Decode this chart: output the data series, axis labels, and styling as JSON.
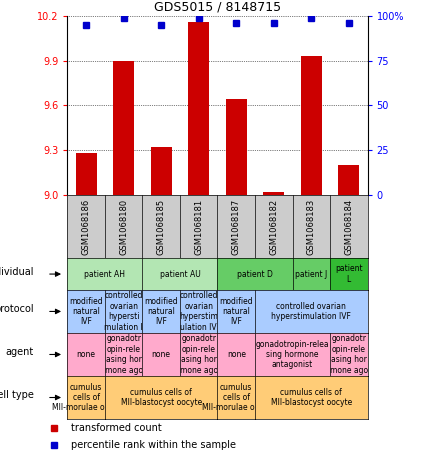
{
  "title": "GDS5015 / 8148715",
  "samples": [
    "GSM1068186",
    "GSM1068180",
    "GSM1068185",
    "GSM1068181",
    "GSM1068187",
    "GSM1068182",
    "GSM1068183",
    "GSM1068184"
  ],
  "transformed_count": [
    9.28,
    9.9,
    9.32,
    10.16,
    9.64,
    9.02,
    9.93,
    9.2
  ],
  "percentile_rank": [
    95,
    99,
    95,
    99,
    96,
    96,
    99,
    96
  ],
  "ylim": [
    9.0,
    10.2
  ],
  "yticks_left": [
    9.0,
    9.3,
    9.6,
    9.9,
    10.2
  ],
  "yticks_right": [
    0,
    25,
    50,
    75,
    100
  ],
  "bar_color": "#cc0000",
  "dot_color": "#0000cc",
  "sample_bg_color": "#cccccc",
  "individual_row": {
    "label": "individual",
    "groups": [
      {
        "text": "patient AH",
        "cols": [
          0,
          1
        ],
        "color": "#b3e6b3"
      },
      {
        "text": "patient AU",
        "cols": [
          2,
          3
        ],
        "color": "#b3e6b3"
      },
      {
        "text": "patient D",
        "cols": [
          4,
          5
        ],
        "color": "#66cc66"
      },
      {
        "text": "patient J",
        "cols": [
          6
        ],
        "color": "#66cc66"
      },
      {
        "text": "patient\nL",
        "cols": [
          7
        ],
        "color": "#33bb33"
      }
    ]
  },
  "protocol_row": {
    "label": "protocol",
    "groups": [
      {
        "text": "modified\nnatural\nIVF",
        "cols": [
          0
        ],
        "color": "#aaccff"
      },
      {
        "text": "controlled\novarian\nhypersti\nmulation I",
        "cols": [
          1
        ],
        "color": "#aaccff"
      },
      {
        "text": "modified\nnatural\nIVF",
        "cols": [
          2
        ],
        "color": "#aaccff"
      },
      {
        "text": "controlled\novarian\nhyperstim\nulation IV",
        "cols": [
          3
        ],
        "color": "#aaccff"
      },
      {
        "text": "modified\nnatural\nIVF",
        "cols": [
          4
        ],
        "color": "#aaccff"
      },
      {
        "text": "controlled ovarian\nhyperstimulation IVF",
        "cols": [
          5,
          6,
          7
        ],
        "color": "#aaccff"
      }
    ]
  },
  "agent_row": {
    "label": "agent",
    "groups": [
      {
        "text": "none",
        "cols": [
          0
        ],
        "color": "#ffaacc"
      },
      {
        "text": "gonadotr\nopin-rele\nasing hor\nmone ago",
        "cols": [
          1
        ],
        "color": "#ffaacc"
      },
      {
        "text": "none",
        "cols": [
          2
        ],
        "color": "#ffaacc"
      },
      {
        "text": "gonadotr\nopin-rele\nasing hor\nmone ago",
        "cols": [
          3
        ],
        "color": "#ffaacc"
      },
      {
        "text": "none",
        "cols": [
          4
        ],
        "color": "#ffaacc"
      },
      {
        "text": "gonadotropin-relea\nsing hormone\nantagonist",
        "cols": [
          5,
          6
        ],
        "color": "#ffaacc"
      },
      {
        "text": "gonadotr\nopin-rele\nasing hor\nmone ago",
        "cols": [
          7
        ],
        "color": "#ffaacc"
      }
    ]
  },
  "celltype_row": {
    "label": "cell type",
    "groups": [
      {
        "text": "cumulus\ncells of\nMII-morulae oocyt",
        "cols": [
          0
        ],
        "color": "#ffcc77"
      },
      {
        "text": "cumulus cells of\nMII-blastocyst oocyte",
        "cols": [
          1,
          2,
          3
        ],
        "color": "#ffcc77"
      },
      {
        "text": "cumulus\ncells of\nMII-morulae oocyt",
        "cols": [
          4
        ],
        "color": "#ffcc77"
      },
      {
        "text": "cumulus cells of\nMII-blastocyst oocyte",
        "cols": [
          5,
          6,
          7
        ],
        "color": "#ffcc77"
      }
    ]
  }
}
